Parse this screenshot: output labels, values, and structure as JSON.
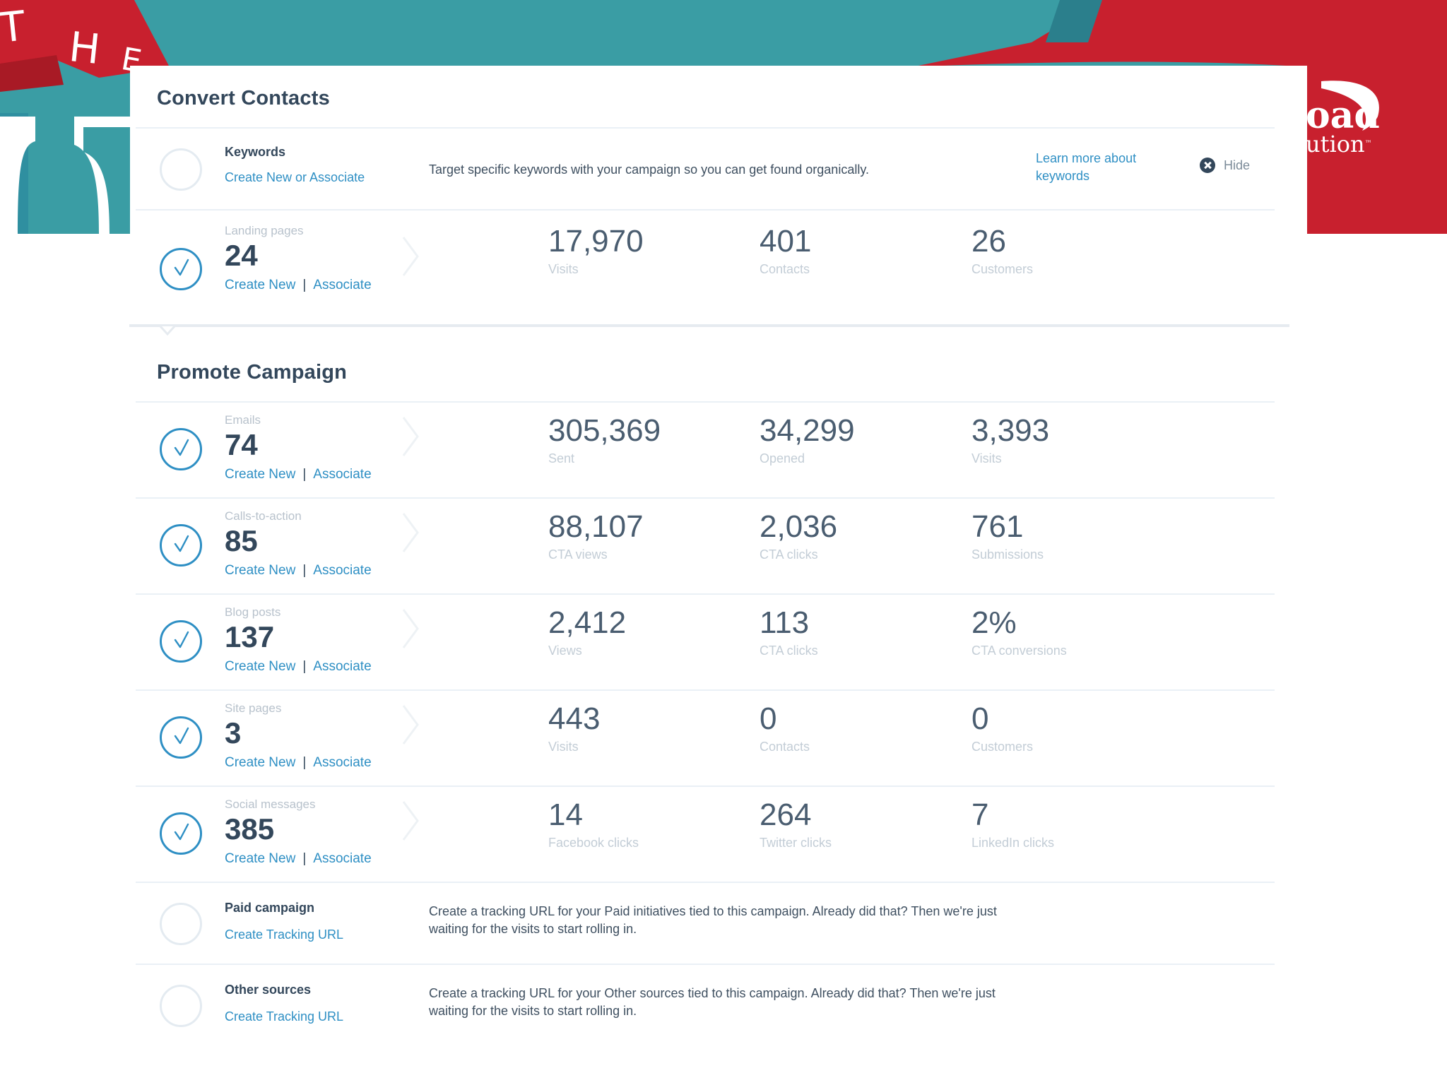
{
  "colors": {
    "banner_teal": "#3a9da4",
    "banner_red": "#c8202e",
    "link_blue": "#2e8fc4",
    "check_blue": "#2e8fc4"
  },
  "banner": {
    "letters": [
      "T",
      "H",
      "E"
    ],
    "logo_word": "oad",
    "logo_sub": "ution",
    "logo_tm": "™"
  },
  "convert": {
    "title": "Convert Contacts",
    "keywords": {
      "title": "Keywords",
      "link": "Create New or Associate",
      "description": "Target specific keywords with your campaign so you can get found organically.",
      "learn_more": "Learn more about keywords",
      "hide": "Hide",
      "icon": "close-circle-icon"
    },
    "landing": {
      "label": "Landing pages",
      "count": "24",
      "create": "Create New",
      "separator": "|",
      "associate": "Associate",
      "stats": [
        {
          "value": "17,970",
          "label": "Visits"
        },
        {
          "value": "401",
          "label": "Contacts"
        },
        {
          "value": "26",
          "label": "Customers"
        }
      ]
    }
  },
  "promote": {
    "title": "Promote Campaign",
    "rows": [
      {
        "label": "Emails",
        "count": "74",
        "create": "Create New",
        "separator": "|",
        "associate": "Associate",
        "stats": [
          {
            "value": "305,369",
            "label": "Sent"
          },
          {
            "value": "34,299",
            "label": "Opened"
          },
          {
            "value": "3,393",
            "label": "Visits"
          }
        ]
      },
      {
        "label": "Calls-to-action",
        "count": "85",
        "create": "Create New",
        "separator": "|",
        "associate": "Associate",
        "stats": [
          {
            "value": "88,107",
            "label": "CTA views"
          },
          {
            "value": "2,036",
            "label": "CTA clicks"
          },
          {
            "value": "761",
            "label": "Submissions"
          }
        ]
      },
      {
        "label": "Blog posts",
        "count": "137",
        "create": "Create New",
        "separator": "|",
        "associate": "Associate",
        "stats": [
          {
            "value": "2,412",
            "label": "Views"
          },
          {
            "value": "113",
            "label": "CTA clicks"
          },
          {
            "value": "2%",
            "label": "CTA conversions"
          }
        ]
      },
      {
        "label": "Site pages",
        "count": "3",
        "create": "Create New",
        "separator": "|",
        "associate": "Associate",
        "stats": [
          {
            "value": "443",
            "label": "Visits"
          },
          {
            "value": "0",
            "label": "Contacts"
          },
          {
            "value": "0",
            "label": "Customers"
          }
        ]
      },
      {
        "label": "Social messages",
        "count": "385",
        "create": "Create New",
        "separator": "|",
        "associate": "Associate",
        "stats": [
          {
            "value": "14",
            "label": "Facebook clicks"
          },
          {
            "value": "264",
            "label": "Twitter clicks"
          },
          {
            "value": "7",
            "label": "LinkedIn clicks"
          }
        ]
      }
    ],
    "paid": {
      "title": "Paid campaign",
      "link": "Create Tracking URL",
      "description": "Create a tracking URL for your Paid initiatives tied to this campaign. Already did that? Then we're just waiting for the visits to start rolling in."
    },
    "other": {
      "title": "Other sources",
      "link": "Create Tracking URL",
      "description": "Create a tracking URL for your Other sources tied to this campaign. Already did that? Then we're just waiting for the visits to start rolling in."
    }
  }
}
